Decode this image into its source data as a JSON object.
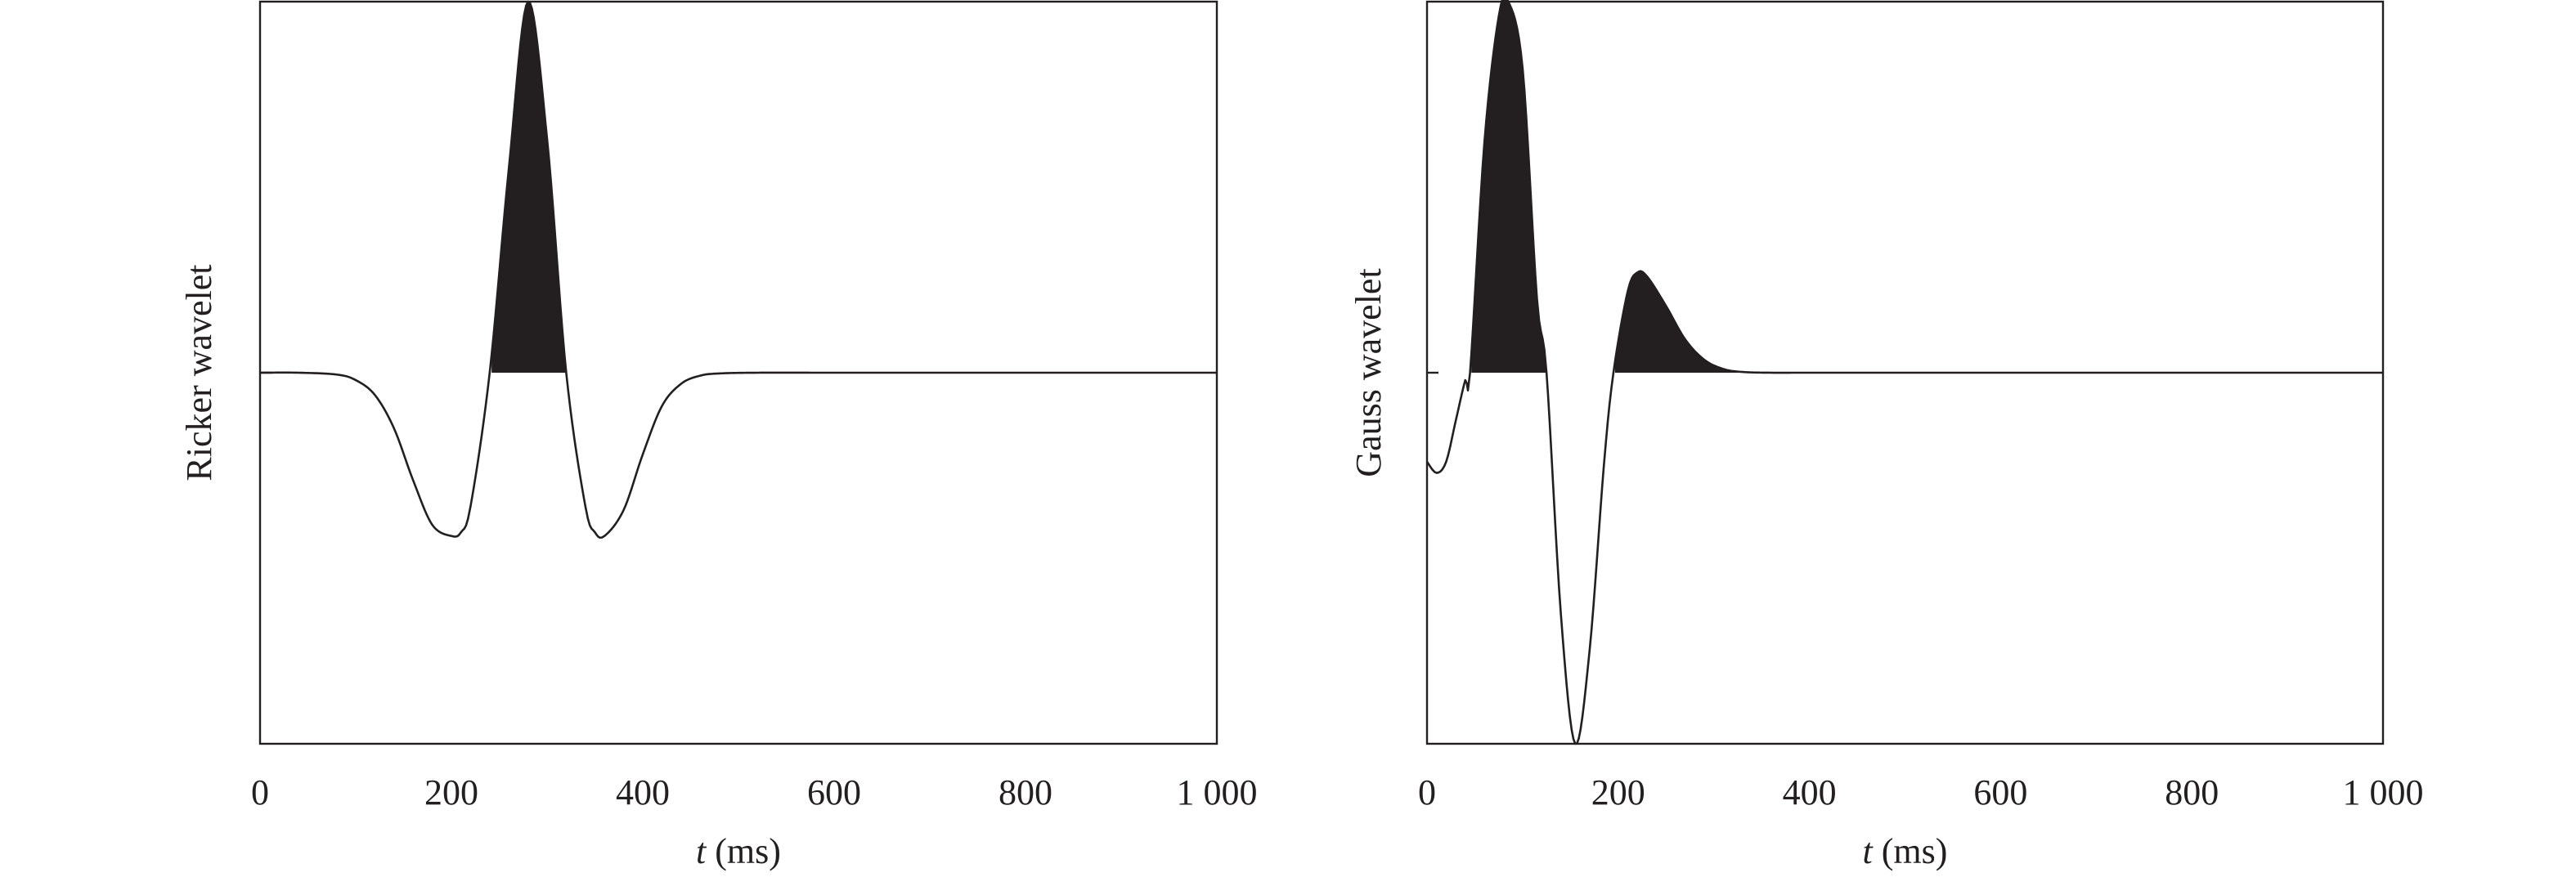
{
  "chart_data": [
    {
      "type": "line",
      "ylabel": "Ricker wavelet",
      "xlabel_var": "t",
      "xlabel_unit": " (ms)",
      "xlim": [
        0,
        1000
      ],
      "ylim": [
        -1.0,
        1.0
      ],
      "xticks": [
        0,
        200,
        400,
        600,
        800,
        1000
      ],
      "xtick_labels": [
        "0",
        "200",
        "400",
        "600",
        "800",
        "1 000"
      ],
      "y_baseline_mark": 0,
      "fill_positive": true,
      "series": [
        {
          "x": [
            0,
            40,
            80,
            100,
            120,
            140,
            160,
            180,
            200,
            210,
            220,
            240,
            260,
            280,
            300,
            320,
            340,
            350,
            360,
            380,
            400,
            420,
            440,
            460,
            480,
            520,
            600,
            800,
            1000
          ],
          "y": [
            0.0,
            0.0,
            -0.005,
            -0.02,
            -0.06,
            -0.15,
            -0.29,
            -0.41,
            -0.44,
            -0.43,
            -0.36,
            0.0,
            0.55,
            1.0,
            0.63,
            0.0,
            -0.36,
            -0.43,
            -0.44,
            -0.37,
            -0.22,
            -0.09,
            -0.03,
            -0.008,
            -0.002,
            0.0,
            0.0,
            0.0,
            0.0
          ]
        }
      ]
    },
    {
      "type": "line",
      "ylabel": "Gauss wavelet",
      "xlabel_var": "t",
      "xlabel_unit": " (ms)",
      "xlim": [
        0,
        1000
      ],
      "ylim": [
        -1.0,
        1.0
      ],
      "xticks": [
        0,
        200,
        400,
        600,
        800,
        1000
      ],
      "xtick_labels": [
        "0",
        "200",
        "400",
        "600",
        "800",
        "1 000"
      ],
      "y_baseline_mark": 0,
      "fill_positive": true,
      "series": [
        {
          "x": [
            0,
            10,
            20,
            30,
            40,
            45,
            60,
            75,
            85,
            100,
            115,
            125,
            140,
            155,
            170,
            185,
            195,
            210,
            220,
            230,
            250,
            270,
            290,
            310,
            330,
            360,
            400,
            600,
            800,
            1000
          ],
          "y": [
            -0.24,
            -0.27,
            -0.24,
            -0.13,
            -0.02,
            0.0,
            0.62,
            0.96,
            1.0,
            0.82,
            0.2,
            0.0,
            -0.65,
            -1.0,
            -0.75,
            -0.25,
            0.0,
            0.22,
            0.27,
            0.26,
            0.18,
            0.09,
            0.035,
            0.01,
            0.002,
            0.0,
            0.0,
            0.0,
            0.0,
            0.0
          ]
        }
      ]
    }
  ]
}
